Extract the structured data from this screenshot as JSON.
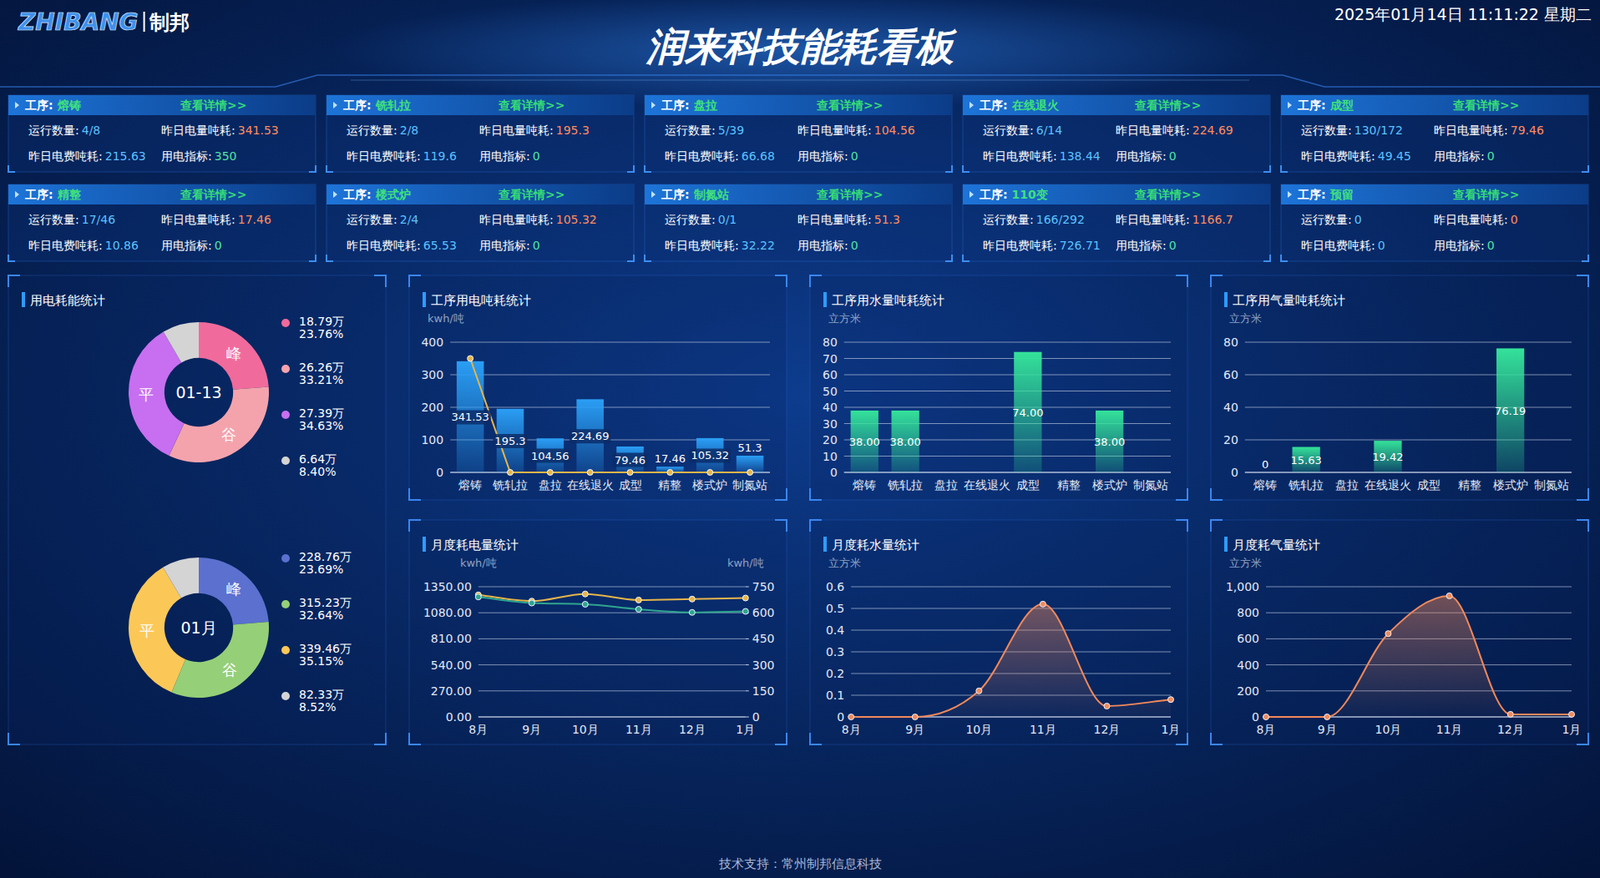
{
  "header": {
    "logo": "ZHIBANG",
    "logo_cn": "制邦",
    "title": "润来科技能耗看板",
    "datetime": "2025年01月14日 11:11:22 星期二"
  },
  "cards": [
    {
      "process_label": "工序:",
      "name": "熔铸",
      "link": "查看详情>>",
      "fields": [
        {
          "label": "运行数量:",
          "value": "4/8"
        },
        {
          "label": "昨日电量吨耗:",
          "value": "341.53"
        },
        {
          "label": "昨日电费吨耗:",
          "value": "215.63"
        },
        {
          "label": "用电指标:",
          "value": "350"
        }
      ]
    },
    {
      "process_label": "工序:",
      "name": "铣轧拉",
      "link": "查看详情>>",
      "fields": [
        {
          "label": "运行数量:",
          "value": "2/8"
        },
        {
          "label": "昨日电量吨耗:",
          "value": "195.3"
        },
        {
          "label": "昨日电费吨耗:",
          "value": "119.6"
        },
        {
          "label": "用电指标:",
          "value": "0"
        }
      ]
    },
    {
      "process_label": "工序:",
      "name": "盘拉",
      "link": "查看详情>>",
      "fields": [
        {
          "label": "运行数量:",
          "value": "5/39"
        },
        {
          "label": "昨日电量吨耗:",
          "value": "104.56"
        },
        {
          "label": "昨日电费吨耗:",
          "value": "66.68"
        },
        {
          "label": "用电指标:",
          "value": "0"
        }
      ]
    },
    {
      "process_label": "工序:",
      "name": "在线退火",
      "link": "查看详情>>",
      "fields": [
        {
          "label": "运行数量:",
          "value": "6/14"
        },
        {
          "label": "昨日电量吨耗:",
          "value": "224.69"
        },
        {
          "label": "昨日电费吨耗:",
          "value": "138.44"
        },
        {
          "label": "用电指标:",
          "value": "0"
        }
      ]
    },
    {
      "process_label": "工序:",
      "name": "成型",
      "link": "查看详情>>",
      "fields": [
        {
          "label": "运行数量:",
          "value": "130/172"
        },
        {
          "label": "昨日电量吨耗:",
          "value": "79.46"
        },
        {
          "label": "昨日电费吨耗:",
          "value": "49.45"
        },
        {
          "label": "用电指标:",
          "value": "0"
        }
      ]
    },
    {
      "process_label": "工序:",
      "name": "精整",
      "link": "查看详情>>",
      "fields": [
        {
          "label": "运行数量:",
          "value": "17/46"
        },
        {
          "label": "昨日电量吨耗:",
          "value": "17.46"
        },
        {
          "label": "昨日电费吨耗:",
          "value": "10.86"
        },
        {
          "label": "用电指标:",
          "value": "0"
        }
      ]
    },
    {
      "process_label": "工序:",
      "name": "楼式炉",
      "link": "查看详情>>",
      "fields": [
        {
          "label": "运行数量:",
          "value": "2/4"
        },
        {
          "label": "昨日电量吨耗:",
          "value": "105.32"
        },
        {
          "label": "昨日电费吨耗:",
          "value": "65.53"
        },
        {
          "label": "用电指标:",
          "value": "0"
        }
      ]
    },
    {
      "process_label": "工序:",
      "name": "制氮站",
      "link": "查看详情>>",
      "fields": [
        {
          "label": "运行数量:",
          "value": "0/1"
        },
        {
          "label": "昨日电量吨耗:",
          "value": "51.3"
        },
        {
          "label": "昨日电费吨耗:",
          "value": "32.22"
        },
        {
          "label": "用电指标:",
          "value": "0"
        }
      ]
    },
    {
      "process_label": "工序:",
      "name": "110变",
      "link": "查看详情>>",
      "fields": [
        {
          "label": "运行数量:",
          "value": "166/292"
        },
        {
          "label": "昨日电量吨耗:",
          "value": "1166.7"
        },
        {
          "label": "昨日电费吨耗:",
          "value": "726.71"
        },
        {
          "label": "用电指标:",
          "value": "0"
        }
      ]
    },
    {
      "process_label": "工序:",
      "name": "预留",
      "link": "查看详情>>",
      "fields": [
        {
          "label": "运行数量:",
          "value": "0"
        },
        {
          "label": "昨日电量吨耗:",
          "value": "0"
        },
        {
          "label": "昨日电费吨耗:",
          "value": "0"
        },
        {
          "label": "用电指标:",
          "value": "0"
        }
      ]
    }
  ],
  "chart_data": [
    {
      "type": "donut",
      "title": "用电耗能统计",
      "center_label": "01-13",
      "categories": [
        "峰",
        "谷",
        "平",
        null
      ],
      "values": [
        23.76,
        33.21,
        34.63,
        8.4
      ],
      "value_labels": [
        "23.76%",
        "33.21%",
        "34.63%",
        "8.40%"
      ],
      "amounts": [
        18.79,
        26.26,
        27.39,
        6.64
      ],
      "amount_labels": [
        "18.79万",
        "26.26万",
        "27.39万",
        "6.64万"
      ],
      "colors": [
        "#f06b9c",
        "#f4a3ad",
        "#c76ff0",
        "#d4d4d4"
      ],
      "legend": "right"
    },
    {
      "type": "donut",
      "center_label": "01月",
      "categories": [
        "峰",
        "谷",
        "平",
        null
      ],
      "values": [
        23.69,
        32.64,
        35.15,
        8.52
      ],
      "value_labels": [
        "23.69%",
        "32.64%",
        "35.15%",
        "8.52%"
      ],
      "amounts": [
        228.76,
        315.23,
        339.46,
        82.33
      ],
      "amount_labels": [
        "228.76万",
        "315.23万",
        "339.46万",
        "82.33万"
      ],
      "colors": [
        "#5b70cf",
        "#95cf78",
        "#fbc858",
        "#d4d4d4"
      ],
      "legend": "right"
    },
    {
      "type": "bar",
      "title": "工序用电吨耗统计",
      "y_label": "kwh/吨",
      "categories": [
        "熔铸",
        "铣轧拉",
        "盘拉",
        "在线退火",
        "成型",
        "精整",
        "楼式炉",
        "制氮站"
      ],
      "series": [
        {
          "type": "bar",
          "color": "#2a9ef5",
          "values": [
            341.53,
            195.3,
            104.56,
            224.69,
            79.46,
            17.46,
            105.32,
            51.3
          ],
          "data_labels": true
        },
        {
          "type": "line",
          "color": "#e6b54a",
          "marker": "circle",
          "values": [
            350,
            0,
            0,
            0,
            0,
            0,
            0,
            0
          ]
        }
      ],
      "ylim": [
        0,
        400
      ],
      "yticks": [
        0,
        100,
        200,
        300,
        400
      ],
      "grid": true
    },
    {
      "type": "bar",
      "title": "工序用水量吨耗统计",
      "y_label": "立方米",
      "categories": [
        "熔铸",
        "铣轧拉",
        "盘拉",
        "在线退火",
        "成型",
        "精整",
        "楼式炉",
        "制氮站"
      ],
      "series": [
        {
          "type": "bar",
          "color": "#34e29a",
          "values": [
            38,
            38,
            0,
            0,
            74,
            0,
            38,
            0
          ],
          "value_labels": [
            "38.00",
            "38.00",
            null,
            null,
            "74.00",
            null,
            "38.00",
            null
          ],
          "data_labels": true
        }
      ],
      "ylim": [
        0,
        80
      ],
      "yticks": [
        0,
        10,
        20,
        30,
        40,
        50,
        60,
        70,
        80
      ],
      "grid": true
    },
    {
      "type": "bar",
      "title": "工序用气量吨耗统计",
      "y_label": "立方米",
      "categories": [
        "熔铸",
        "铣轧拉",
        "盘拉",
        "在线退火",
        "成型",
        "精整",
        "楼式炉",
        "制氮站"
      ],
      "series": [
        {
          "type": "bar",
          "color": "#34e29a",
          "values": [
            0,
            15.63,
            0,
            19.42,
            0,
            0,
            76.19,
            0
          ],
          "value_labels": [
            "0",
            "15.63",
            null,
            "19.42",
            null,
            null,
            "76.19",
            null
          ],
          "data_labels": true
        }
      ],
      "ylim": [
        0,
        80
      ],
      "yticks": [
        0,
        20,
        40,
        60,
        80
      ],
      "grid": true
    },
    {
      "type": "line",
      "title": "月度耗电量统计",
      "y_label": "kwh/吨",
      "y2_label": "kwh/吨",
      "categories": [
        "8月",
        "9月",
        "10月",
        "11月",
        "12月",
        "1月"
      ],
      "series": [
        {
          "color": "#e6b54a",
          "marker": "circle",
          "values": [
            1265,
            1201,
            1275,
            1212,
            1222,
            1233
          ]
        },
        {
          "color": "#2fa58f",
          "marker": "circle",
          "axis": "y2",
          "values": [
            691,
            656,
            649,
            620,
            602,
            608
          ]
        }
      ],
      "ylim": [
        0,
        1350
      ],
      "yticks": [
        {
          "value": 0,
          "label": "0.00"
        },
        {
          "value": 270,
          "label": "270.00"
        },
        {
          "value": 540,
          "label": "540.00"
        },
        {
          "value": 810,
          "label": "810.00"
        },
        {
          "value": 1080,
          "label": "1080.00"
        },
        {
          "value": 1350,
          "label": "1350.00"
        }
      ],
      "y2lim": [
        0,
        750
      ],
      "y2ticks": [
        0,
        150,
        300,
        450,
        600,
        750
      ],
      "grid": true
    },
    {
      "type": "area",
      "title": "月度耗水量统计",
      "y_label": "立方米",
      "categories": [
        "8月",
        "9月",
        "10月",
        "11月",
        "12月",
        "1月"
      ],
      "series": [
        {
          "color": "#f2895a",
          "marker": "circle",
          "values": [
            0,
            0,
            0.12,
            0.52,
            0.05,
            0.08
          ]
        }
      ],
      "ylim": [
        0,
        0.6
      ],
      "yticks": [
        0,
        0.1,
        0.2,
        0.3,
        0.4,
        0.5,
        0.6
      ],
      "grid": true
    },
    {
      "type": "area",
      "title": "月度耗气量统计",
      "y_label": "立方米",
      "categories": [
        "8月",
        "9月",
        "10月",
        "11月",
        "12月",
        "1月"
      ],
      "series": [
        {
          "color": "#f2895a",
          "marker": "circle",
          "values": [
            0,
            0,
            640,
            930,
            20,
            20
          ]
        }
      ],
      "ylim": [
        0,
        1000
      ],
      "yticks": [
        0,
        200,
        400,
        600,
        800,
        {
          "value": 1000,
          "label": "1,000"
        }
      ],
      "grid": true
    }
  ],
  "footer": "技术支持：常州制邦信息科技"
}
